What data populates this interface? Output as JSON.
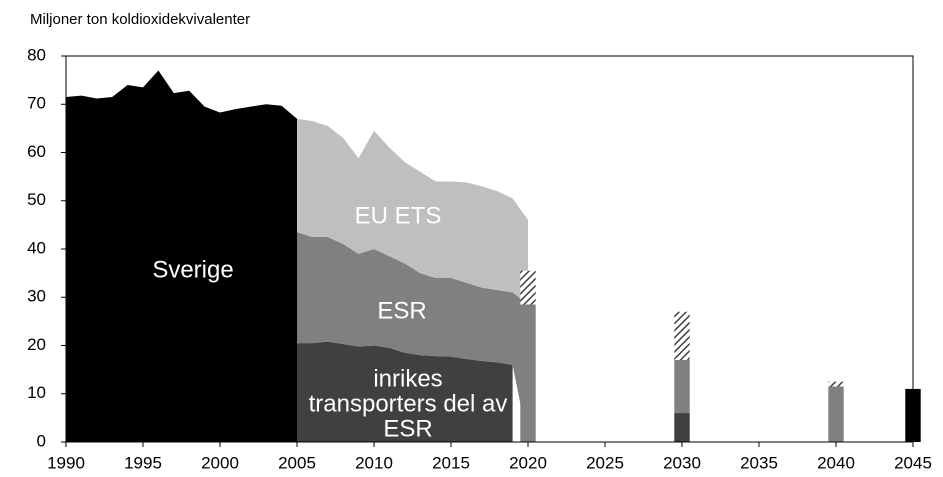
{
  "chart_data": {
    "type": "area",
    "ylabel": "Miljoner ton koldioxidekvivalenter",
    "xlim": [
      1990,
      2045
    ],
    "xticks": [
      1990,
      1995,
      2000,
      2005,
      2010,
      2015,
      2020,
      2025,
      2030,
      2035,
      2040,
      2045
    ],
    "ylim": [
      0,
      80
    ],
    "yticks": [
      0,
      10,
      20,
      30,
      40,
      50,
      60,
      70,
      80
    ],
    "series": [
      {
        "name": "Sverige",
        "color": "#000000",
        "x": [
          1990,
          1991,
          1992,
          1993,
          1994,
          1995,
          1996,
          1997,
          1998,
          1999,
          2000,
          2001,
          2002,
          2003,
          2004,
          2005
        ],
        "values": [
          71.5,
          71.8,
          71.2,
          71.5,
          74,
          73.5,
          77,
          72.3,
          72.8,
          69.5,
          68.3,
          69,
          69.5,
          70,
          69.7,
          67
        ]
      },
      {
        "name": "inrikes transporters del av ESR",
        "color": "#404040",
        "x": [
          2005,
          2006,
          2007,
          2008,
          2009,
          2010,
          2011,
          2012,
          2013,
          2014,
          2015,
          2016,
          2017,
          2018,
          2019,
          2020
        ],
        "values": [
          20.5,
          20.5,
          20.8,
          20.3,
          19.8,
          20,
          19.5,
          18.5,
          18,
          17.8,
          17.7,
          17.2,
          16.8,
          16.5,
          16,
          null
        ]
      },
      {
        "name": "ESR",
        "color": "#808080",
        "x": [
          2005,
          2006,
          2007,
          2008,
          2009,
          2010,
          2011,
          2012,
          2013,
          2014,
          2015,
          2016,
          2017,
          2018,
          2019,
          2020
        ],
        "values": [
          23,
          22,
          21.7,
          20.7,
          19.2,
          20,
          19,
          18.5,
          17,
          16.2,
          16.3,
          15.8,
          15.2,
          15,
          15,
          28.5
        ]
      },
      {
        "name": "EU ETS",
        "color": "#bfbfbf",
        "x": [
          2005,
          2006,
          2007,
          2008,
          2009,
          2010,
          2011,
          2012,
          2013,
          2014,
          2015,
          2016,
          2017,
          2018,
          2019,
          2020
        ],
        "values": [
          23.5,
          24,
          23,
          22,
          19.8,
          24.5,
          22.5,
          21,
          21,
          20,
          20,
          20.8,
          21,
          20.5,
          19.5,
          17.5
        ]
      }
    ],
    "bars": {
      "x": [
        2020,
        2030,
        2040,
        2045
      ],
      "series": [
        {
          "color": "#404040",
          "values": [
            null,
            6,
            null,
            null
          ]
        },
        {
          "color": "#808080",
          "values": [
            28.5,
            11,
            11.5,
            null
          ]
        },
        {
          "color": "#595959",
          "hatch": true,
          "values": [
            7,
            10,
            1,
            null
          ]
        },
        {
          "color": "#000000",
          "values": [
            null,
            null,
            null,
            11
          ]
        }
      ]
    }
  }
}
